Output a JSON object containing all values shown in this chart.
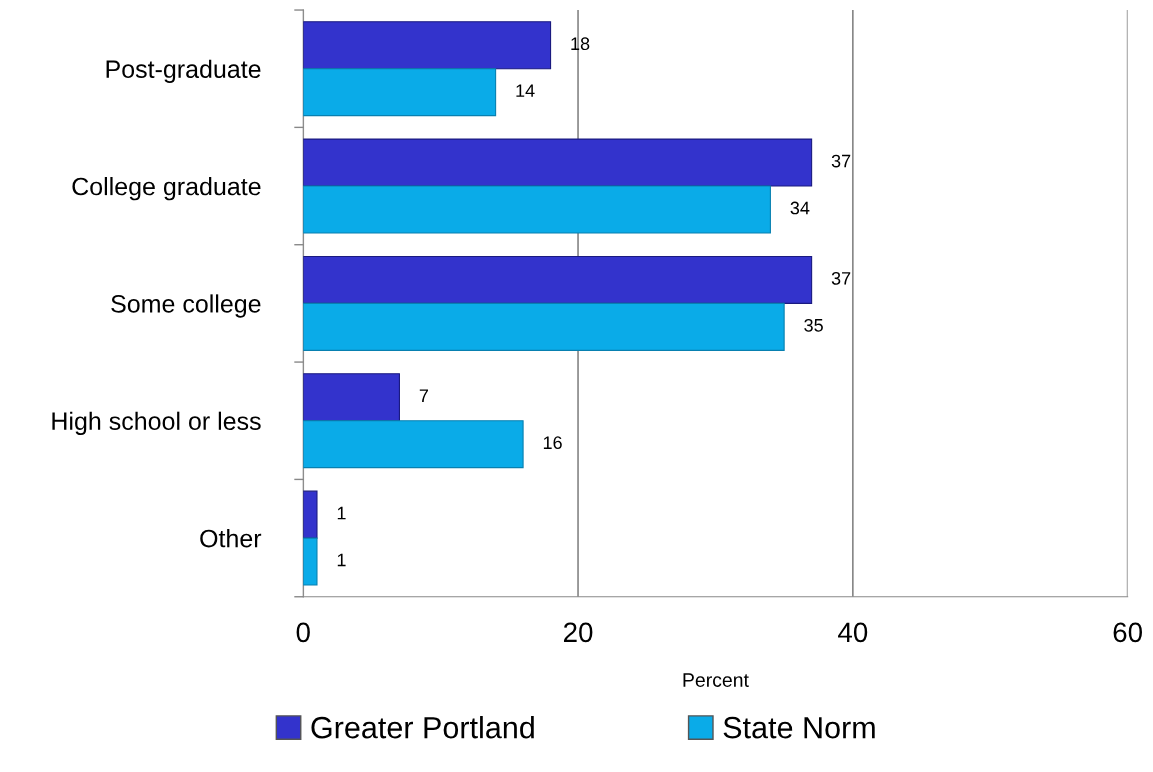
{
  "chart_data": {
    "type": "bar",
    "orientation": "horizontal",
    "categories": [
      "Post-graduate",
      "College graduate",
      "Some college",
      "High school or less",
      "Other"
    ],
    "series": [
      {
        "name": "Greater Portland",
        "color": "#3333cc",
        "values": [
          18,
          37,
          37,
          7,
          1
        ]
      },
      {
        "name": "State Norm",
        "color": "#0aabe8",
        "values": [
          14,
          34,
          35,
          16,
          1
        ]
      }
    ],
    "xlabel": "Percent",
    "xlim": [
      0,
      60
    ],
    "xticks": [
      0,
      20,
      40,
      60
    ],
    "grid": "x",
    "legend": "bottom",
    "data_labels": true
  }
}
